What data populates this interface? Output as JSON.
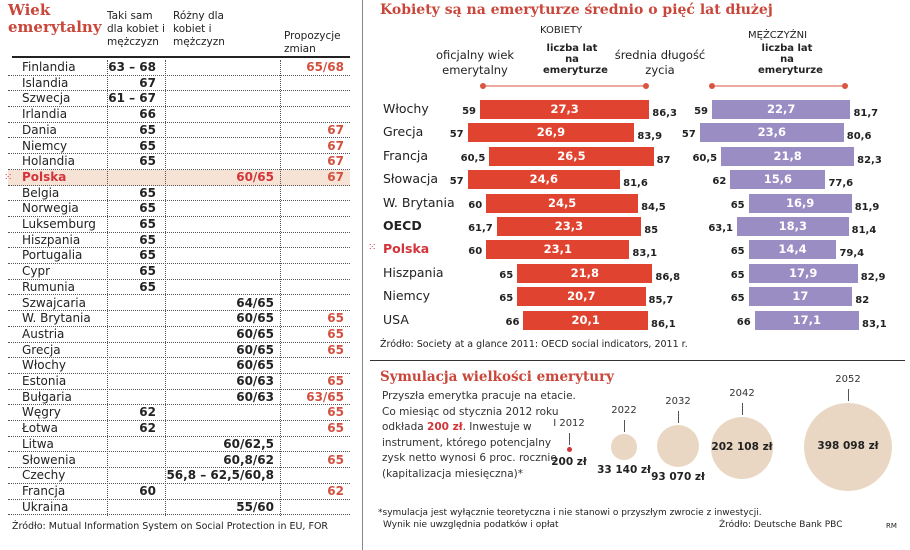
{
  "colors": {
    "accent_red": "#e0432f",
    "title_red": "#c9463a",
    "men_purple": "#9a8dc4",
    "circle_beige": "#ead7c3",
    "highlight_row": "#f6e3d6"
  },
  "chart_data": [
    {
      "type": "table",
      "title": "Wiek emerytalny",
      "columns": [
        "",
        "Taki sam dla kobiet i mężczyzn",
        "Różny dla kobiet i mężczyzn",
        "Propozycje zmian"
      ],
      "rows": [
        [
          "Finlandia",
          "63 – 68",
          "",
          "65/68"
        ],
        [
          "Islandia",
          "67",
          "",
          ""
        ],
        [
          "Szwecja",
          "61 – 67",
          "",
          ""
        ],
        [
          "Irlandia",
          "66",
          "",
          ""
        ],
        [
          "Dania",
          "65",
          "",
          "67"
        ],
        [
          "Niemcy",
          "65",
          "",
          "67"
        ],
        [
          "Holandia",
          "65",
          "",
          "67"
        ],
        [
          "Polska",
          "",
          "60/65",
          "67"
        ],
        [
          "Belgia",
          "65",
          "",
          ""
        ],
        [
          "Norwegia",
          "65",
          "",
          ""
        ],
        [
          "Luksemburg",
          "65",
          "",
          ""
        ],
        [
          "Hiszpania",
          "65",
          "",
          ""
        ],
        [
          "Portugalia",
          "65",
          "",
          ""
        ],
        [
          "Cypr",
          "65",
          "",
          ""
        ],
        [
          "Rumunia",
          "65",
          "",
          ""
        ],
        [
          "Szwajcaria",
          "",
          "64/65",
          ""
        ],
        [
          "W. Brytania",
          "",
          "60/65",
          "65"
        ],
        [
          "Austria",
          "",
          "60/65",
          "65"
        ],
        [
          "Grecja",
          "",
          "60/65",
          "65"
        ],
        [
          "Włochy",
          "",
          "60/65",
          ""
        ],
        [
          "Estonia",
          "",
          "60/63",
          "65"
        ],
        [
          "Bułgaria",
          "",
          "60/63",
          "63/65"
        ],
        [
          "Węgry",
          "62",
          "",
          "65"
        ],
        [
          "Łotwa",
          "62",
          "",
          "65"
        ],
        [
          "Litwa",
          "",
          "60/62,5",
          ""
        ],
        [
          "Słowenia",
          "",
          "60,8/62",
          "65"
        ],
        [
          "Czechy",
          "",
          "56,8 – 62,5/60,8",
          ""
        ],
        [
          "Francja",
          "60",
          "",
          "62"
        ],
        [
          "Ukraina",
          "",
          "55/60",
          ""
        ]
      ],
      "highlight": "Polska",
      "source": "Źródło: Mutual Information System on Social Protection in EU, FOR"
    },
    {
      "type": "bar",
      "title": "Kobiety są na emeryturze średnio o pięć lat dłużej",
      "header_left": "oficjalny wiek emerytalny",
      "header_right": "średnia długość zycia",
      "categories": [
        "Włochy",
        "Grecja",
        "Francja",
        "Słowacja",
        "W. Brytania",
        "OECD",
        "Polska",
        "Hiszpania",
        "Niemcy",
        "USA"
      ],
      "series": [
        {
          "name": "KOBIETY",
          "sublabel": "liczba lat na emeryturze",
          "labels": [
            "59",
            "57",
            "60,5",
            "57",
            "60",
            "61,7",
            "60",
            "65",
            "65",
            "66"
          ],
          "retirement_age": [
            59,
            57,
            60.5,
            57,
            60,
            61.7,
            60,
            65,
            65,
            66
          ],
          "years": [
            "27,3",
            "26,9",
            "26,5",
            "24,6",
            "24,5",
            "23,3",
            "23,1",
            "21,8",
            "20,7",
            "20,1"
          ],
          "life_expectancy": [
            "86,3",
            "83,9",
            "87",
            "81,6",
            "84,5",
            "85",
            "83,1",
            "86,8",
            "85,7",
            "86,1"
          ],
          "life_values": [
            86.3,
            83.9,
            87,
            81.6,
            84.5,
            85,
            83.1,
            86.8,
            85.7,
            86.1
          ]
        },
        {
          "name": "MĘŻCZYŹNI",
          "sublabel": "liczba lat na emeryturze",
          "labels": [
            "59",
            "57",
            "60,5",
            "62",
            "65",
            "63,1",
            "65",
            "65",
            "65",
            "66"
          ],
          "retirement_age": [
            59,
            57,
            60.5,
            62,
            65,
            63.1,
            65,
            65,
            65,
            66
          ],
          "years": [
            "22,7",
            "23,6",
            "21,8",
            "15,6",
            "16,9",
            "18,3",
            "14,4",
            "17,9",
            "17",
            "17,1"
          ],
          "life_expectancy": [
            "81,7",
            "80,6",
            "82,3",
            "77,6",
            "81,9",
            "81,4",
            "79,4",
            "82,9",
            "82",
            "83,1"
          ],
          "life_values": [
            81.7,
            80.6,
            82.3,
            77.6,
            81.9,
            81.4,
            79.4,
            82.9,
            82,
            83.1
          ]
        }
      ],
      "source": "Źródło: Society at a glance 2011: OECD social indicators, 2011 r."
    },
    {
      "type": "scatter",
      "title": "Symulacja wielkości emerytury",
      "description_parts": [
        "Przyszła emerytka pracuje na etacie. Co miesiąc od stycznia 2012 roku odkłada ",
        "200 zł",
        ". Inwestuje w instrument, którego potencjalny zysk netto wynosi 6 proc. rocznie (kapitalizacja miesięczna)*"
      ],
      "points": [
        {
          "x": "I 2012",
          "value": 200,
          "label": "200 zł"
        },
        {
          "x": "2022",
          "value": 33140,
          "label": "33 140 zł"
        },
        {
          "x": "2032",
          "value": 93070,
          "label": "93 070 zł"
        },
        {
          "x": "2042",
          "value": 202108,
          "label": "202 108 zł"
        },
        {
          "x": "2052",
          "value": 398098,
          "label": "398 098 zł"
        }
      ],
      "footnote1": "*symulacja jest wyłącznie teoretyczna i nie stanowi o przyszłym zwrocie z inwestycji.",
      "footnote2": "Wynik nie uwzględnia podatków i opłat",
      "source": "Źródło: Deutsche Bank PBC",
      "author": "RM"
    }
  ]
}
